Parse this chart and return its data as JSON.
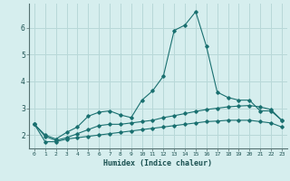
{
  "xlabel": "Humidex (Indice chaleur)",
  "background_color": "#d6eeee",
  "grid_color": "#b8d8d8",
  "line_color": "#1a7070",
  "x_values": [
    0,
    1,
    2,
    3,
    4,
    5,
    6,
    7,
    8,
    9,
    10,
    11,
    12,
    13,
    14,
    15,
    16,
    17,
    18,
    19,
    20,
    21,
    22,
    23
  ],
  "series1": [
    2.4,
    2.0,
    1.85,
    2.1,
    2.3,
    2.7,
    2.85,
    2.9,
    2.75,
    2.65,
    3.3,
    3.65,
    4.2,
    5.9,
    6.1,
    6.6,
    5.3,
    3.6,
    3.4,
    3.3,
    3.3,
    2.9,
    2.9,
    2.55
  ],
  "series2": [
    2.4,
    1.95,
    1.8,
    1.9,
    2.05,
    2.2,
    2.35,
    2.4,
    2.4,
    2.45,
    2.5,
    2.55,
    2.65,
    2.72,
    2.8,
    2.88,
    2.95,
    3.0,
    3.05,
    3.08,
    3.1,
    3.05,
    2.95,
    2.55
  ],
  "series3": [
    2.4,
    1.75,
    1.75,
    1.85,
    1.9,
    1.95,
    2.0,
    2.05,
    2.1,
    2.15,
    2.2,
    2.25,
    2.3,
    2.35,
    2.4,
    2.45,
    2.5,
    2.52,
    2.55,
    2.55,
    2.55,
    2.5,
    2.45,
    2.3
  ],
  "ylim": [
    1.5,
    6.9
  ],
  "xlim": [
    -0.5,
    23.5
  ],
  "yticks": [
    2,
    3,
    4,
    5,
    6
  ],
  "xticks": [
    0,
    1,
    2,
    3,
    4,
    5,
    6,
    7,
    8,
    9,
    10,
    11,
    12,
    13,
    14,
    15,
    16,
    17,
    18,
    19,
    20,
    21,
    22,
    23
  ]
}
